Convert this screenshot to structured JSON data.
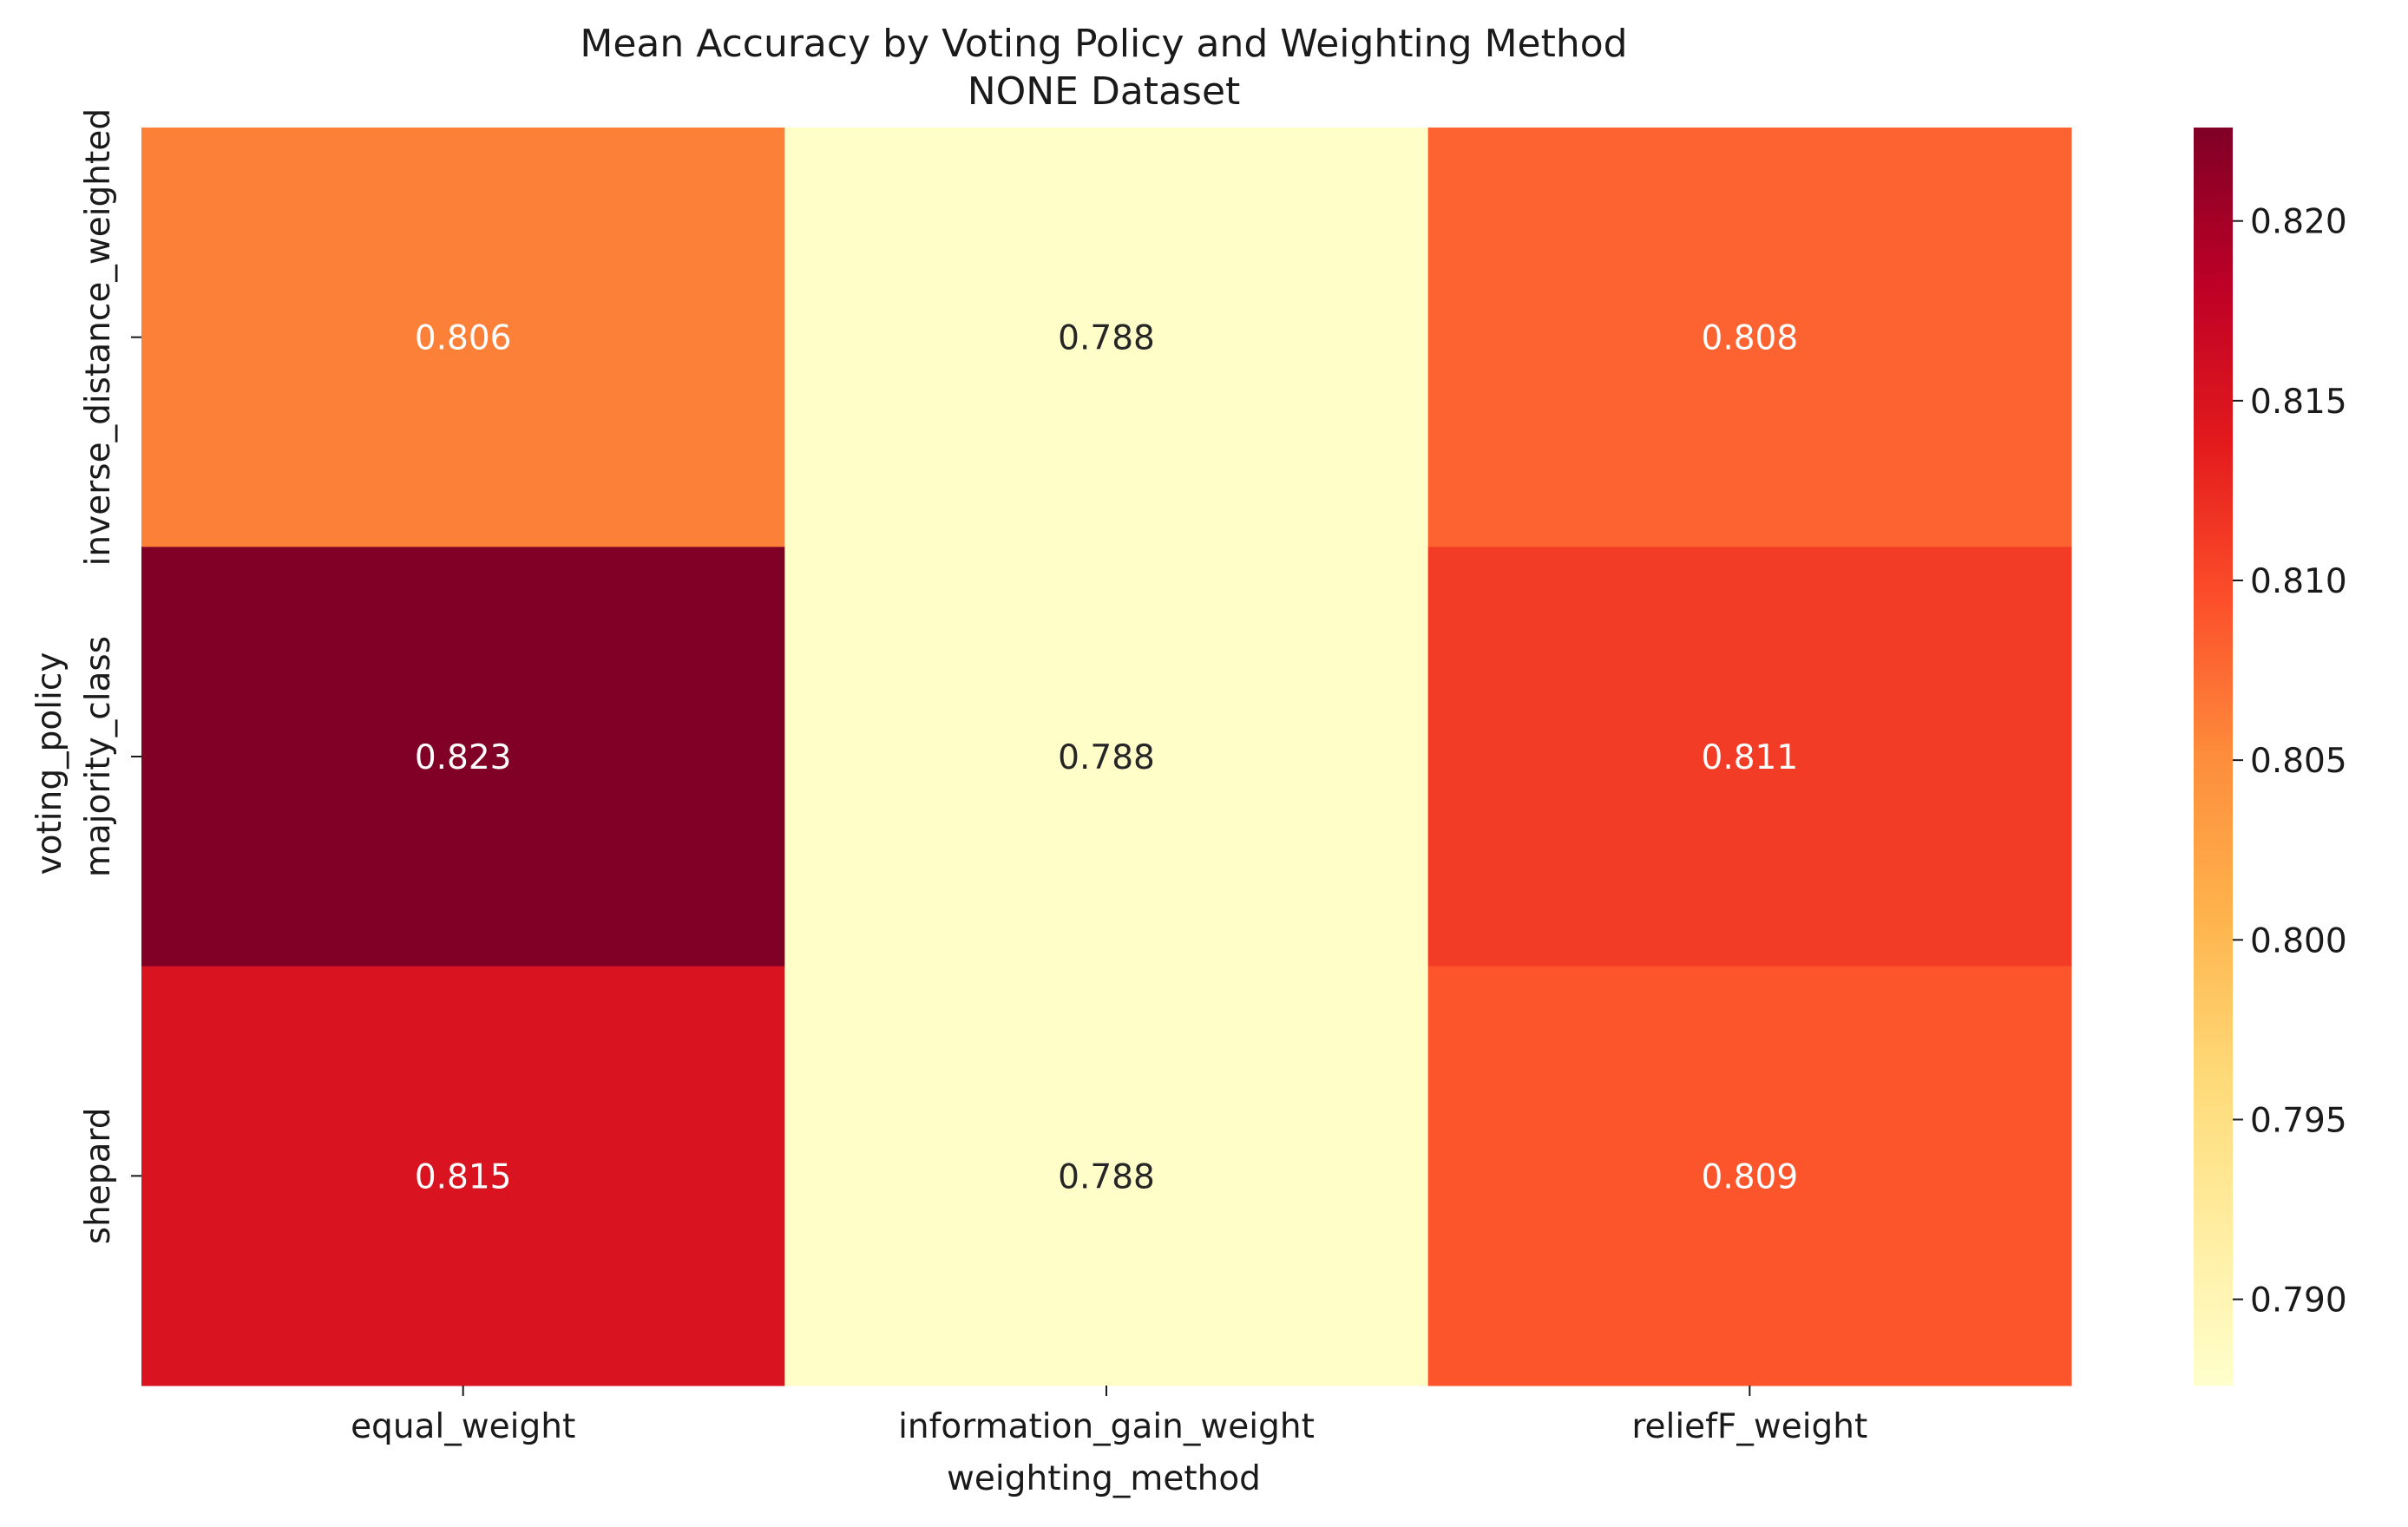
{
  "chart_data": {
    "type": "heatmap",
    "title": "Mean Accuracy by Voting Policy and Weighting Method",
    "subtitle": "NONE Dataset",
    "xlabel": "weighting_method",
    "ylabel": "voting_policy",
    "x_categories": [
      "equal_weight",
      "information_gain_weight",
      "reliefF_weight"
    ],
    "y_categories": [
      "inverse_distance_weighted",
      "majority_class",
      "shepard"
    ],
    "values": [
      [
        0.806,
        0.788,
        0.808
      ],
      [
        0.823,
        0.788,
        0.811
      ],
      [
        0.815,
        0.788,
        0.809
      ]
    ],
    "cell_labels": [
      [
        "0.806",
        "0.788",
        "0.808"
      ],
      [
        "0.823",
        "0.788",
        "0.811"
      ],
      [
        "0.815",
        "0.788",
        "0.809"
      ]
    ],
    "colormap": "YlOrRd",
    "colorbar": {
      "range": [
        0.7876,
        0.8226
      ],
      "ticks": [
        0.79,
        0.795,
        0.8,
        0.805,
        0.81,
        0.815,
        0.82
      ],
      "tick_labels": [
        "0.790",
        "0.795",
        "0.800",
        "0.805",
        "0.810",
        "0.815",
        "0.820"
      ]
    },
    "grid": false,
    "legend": "colorbar-right"
  }
}
